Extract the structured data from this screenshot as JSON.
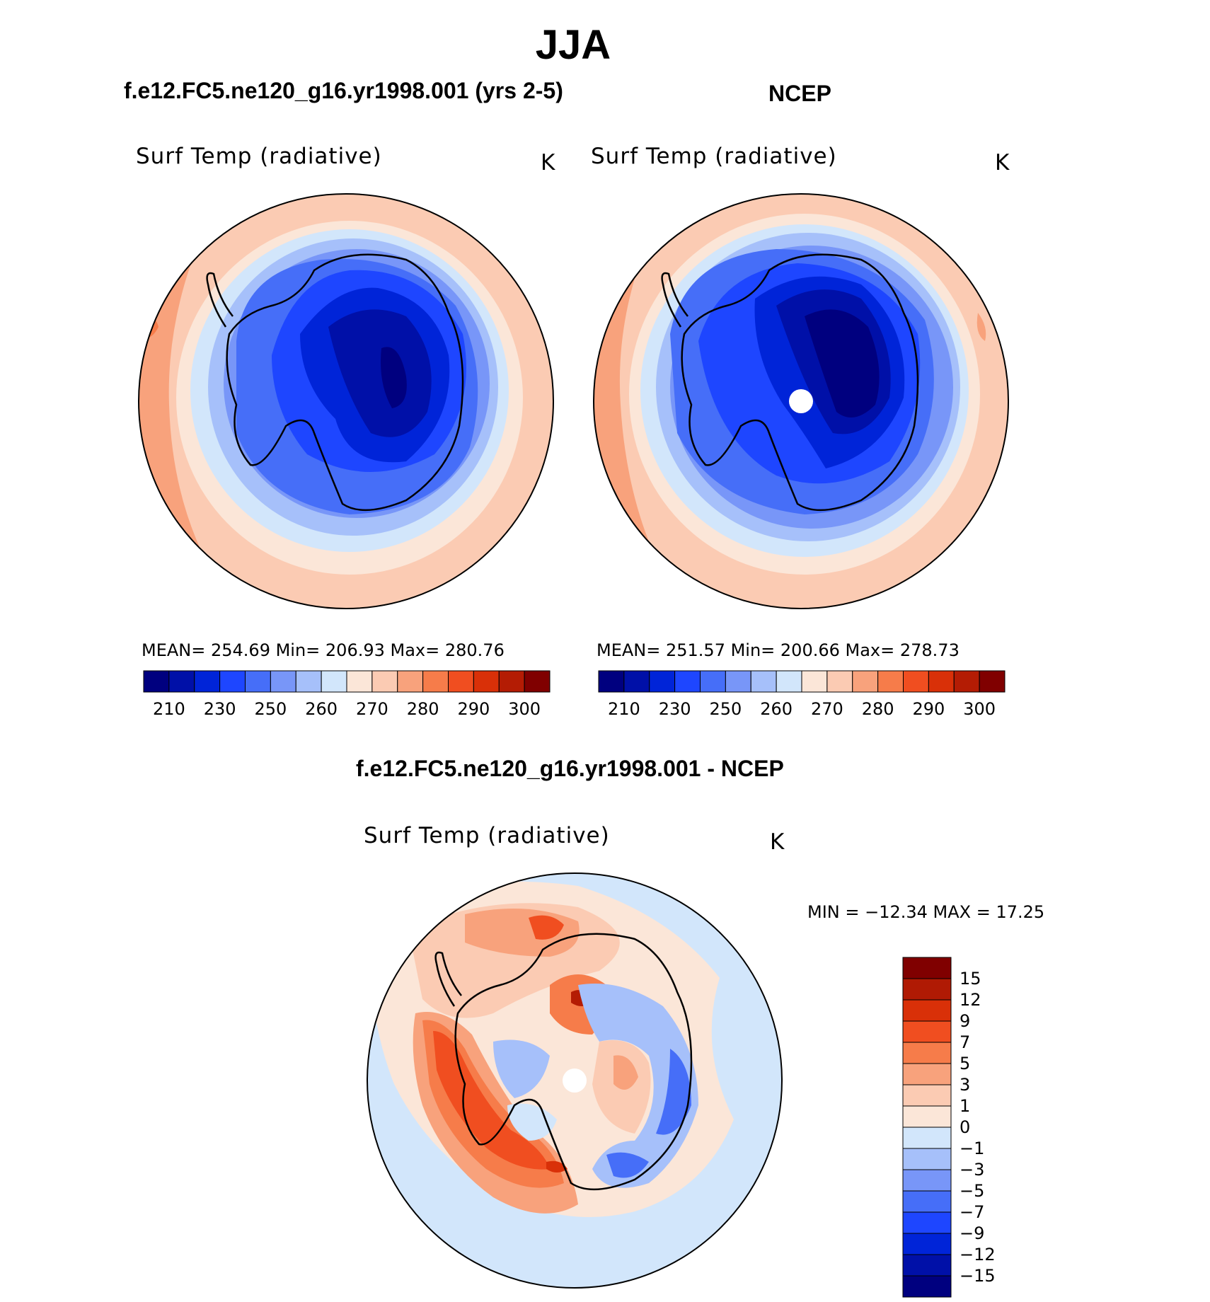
{
  "title": "JJA",
  "panels": {
    "model": {
      "case_title": "f.e12.FC5.ne120_g16.yr1998.001 (yrs 2-5)",
      "variable": "Surf Temp (radiative)",
      "units": "K",
      "stats": "MEAN=  254.69    Min=  206.93    Max=  280.76"
    },
    "obs": {
      "case_title": "NCEP",
      "variable": "Surf Temp (radiative)",
      "units": "K",
      "stats": "MEAN=  251.57    Min=  200.66    Max=  278.73"
    },
    "diff": {
      "case_title": "f.e12.FC5.ne120_g16.yr1998.001 - NCEP",
      "variable": "Surf Temp (radiative)",
      "units": "K",
      "stats": "MIN  =  −12.34  MAX  =    17.25"
    }
  },
  "colorbar_abs": {
    "colors": [
      "#00007f",
      "#0010a8",
      "#0024d8",
      "#1e46ff",
      "#466ef8",
      "#7896f8",
      "#a6c0fa",
      "#d2e6fb",
      "#fbe6d8",
      "#fbcbb3",
      "#f8a27c",
      "#f67c4a",
      "#f04e20",
      "#d93008",
      "#b41c04",
      "#800000"
    ],
    "labels": [
      "210",
      "230",
      "250",
      "260",
      "270",
      "280",
      "290",
      "300"
    ]
  },
  "colorbar_diff": {
    "colors": [
      "#800000",
      "#b01a04",
      "#d93008",
      "#f04e20",
      "#f67c4a",
      "#f8a27c",
      "#fbcbb3",
      "#fbe6d8",
      "#d2e6fb",
      "#a6c0fa",
      "#7896f8",
      "#466ef8",
      "#1e46ff",
      "#0024d8",
      "#0010a8",
      "#00007f"
    ],
    "labels": [
      "15",
      "12",
      "9",
      "7",
      "5",
      "3",
      "1",
      "0",
      "−1",
      "−3",
      "−5",
      "−7",
      "−9",
      "−12",
      "−15"
    ]
  },
  "chart_data": [
    {
      "type": "heatmap",
      "map": "south polar stereographic",
      "field": "Surf Temp (radiative)",
      "units": "K",
      "season": "JJA",
      "source": "f.e12.FC5.ne120_g16.yr1998.001 (yrs 2-5)",
      "mean": 254.69,
      "min": 206.93,
      "max": 280.76,
      "levels": [
        210,
        230,
        250,
        260,
        270,
        280,
        290,
        300
      ]
    },
    {
      "type": "heatmap",
      "map": "south polar stereographic",
      "field": "Surf Temp (radiative)",
      "units": "K",
      "season": "JJA",
      "source": "NCEP",
      "mean": 251.57,
      "min": 200.66,
      "max": 278.73,
      "levels": [
        210,
        230,
        250,
        260,
        270,
        280,
        290,
        300
      ]
    },
    {
      "type": "heatmap",
      "map": "south polar stereographic",
      "field": "Surf Temp (radiative)",
      "units": "K",
      "season": "JJA",
      "source": "f.e12.FC5.ne120_g16.yr1998.001 - NCEP",
      "min": -12.34,
      "max": 17.25,
      "levels": [
        -15,
        -12,
        -9,
        -7,
        -5,
        -3,
        -1,
        0,
        1,
        3,
        5,
        7,
        9,
        12,
        15
      ]
    }
  ]
}
